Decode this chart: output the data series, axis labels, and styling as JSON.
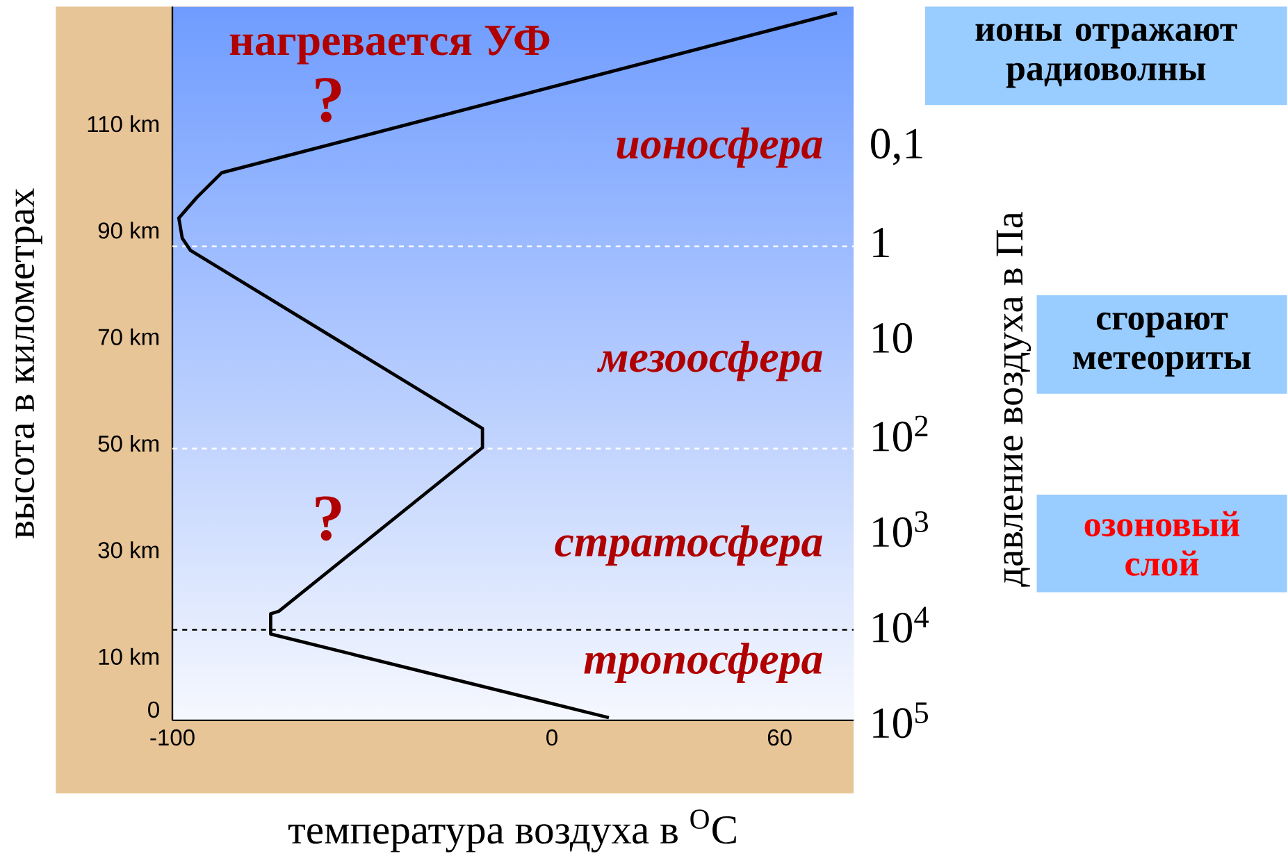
{
  "chart_data": {
    "type": "line",
    "xlabel": "температура воздуха в $^{O}$C",
    "ylabel": "высота в километрах",
    "y2label": "давление воздуха в Па",
    "xlim": [
      -100,
      79.5
    ],
    "xticks": [
      -100,
      0,
      60
    ],
    "ylim": [
      -2,
      132
    ],
    "yticks": [
      0,
      {
        "value": 10,
        "label": "10 km"
      },
      {
        "value": 30,
        "label": "30 km"
      },
      {
        "value": 50,
        "label": "50 km"
      },
      {
        "value": 70,
        "label": "70 km"
      },
      {
        "value": 90,
        "label": "90 km"
      },
      {
        "value": 110,
        "label": "110 km"
      }
    ],
    "y2lim": [
      100000,
      0.0034
    ],
    "y2ticks": [
      {
        "value": 0.1,
        "label": "0,1"
      },
      1,
      10,
      {
        "value": 100,
        "label": "10$^{2}$"
      },
      {
        "value": 1000,
        "label": "10$^{3}$"
      },
      {
        "value": 10000,
        "label": "10$^{4}$"
      },
      {
        "value": 100000,
        "label": "10$^{5}$"
      }
    ],
    "log": "y2",
    "grid": false,
    "marker": "none",
    "line_style": "solid",
    "series": [
      {
        "color": "#000000",
        "x": [
          15.0,
          -74.1,
          -74.1,
          -71.9,
          -18.3,
          -18.3,
          -95.2,
          -97.4,
          -98.3,
          -93.5,
          -87.0,
          75.1
        ],
        "values": [
          -1.5,
          14.2,
          18.0,
          18.5,
          49.2,
          52.8,
          86.2,
          88.5,
          92.3,
          96.2,
          100.8,
          130.8
        ]
      }
    ],
    "ref_lines": [
      {
        "axis": "y",
        "value": 87,
        "color": "#ffffff",
        "line_style": "dashed"
      },
      {
        "axis": "y",
        "value": 49,
        "color": "#ffffff",
        "line_style": "dashed"
      },
      {
        "axis": "y",
        "value": 15,
        "color": "#000000",
        "line_style": "dashed"
      }
    ],
    "annotations": [
      "нагревается УФ",
      "?",
      "ионосфера",
      "мезоосфера",
      "?",
      "стратосфера",
      "тропосфера",
      "ионы отражают радиоволны",
      "сгорают метеориты",
      "озоновый слой"
    ]
  }
}
